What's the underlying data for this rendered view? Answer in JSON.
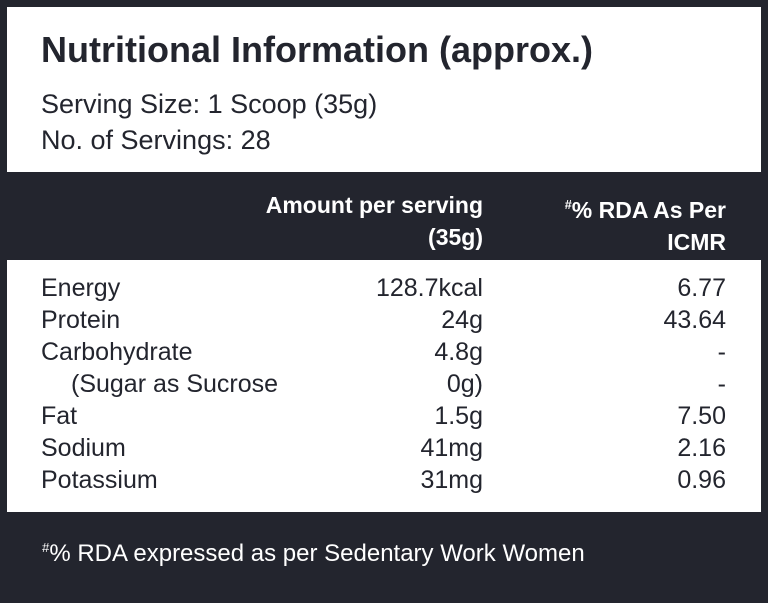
{
  "header": {
    "title": "Nutritional Information (approx.)",
    "serving_size": "Serving Size: 1 Scoop (35g)",
    "servings_count": "No. of Servings: 28"
  },
  "columns": {
    "amount_line1": "Amount per serving",
    "amount_line2": "(35g)",
    "rda_marker": "#",
    "rda_line1": "% RDA As Per",
    "rda_line2": "ICMR"
  },
  "rows": [
    {
      "name": "Energy",
      "amount": "128.7kcal",
      "rda": "6.77"
    },
    {
      "name": "Protein",
      "amount": "24g",
      "rda": "43.64"
    },
    {
      "name": "Carbohydrate",
      "amount": "4.8g",
      "rda": "-"
    },
    {
      "name": "(Sugar as Sucrose",
      "amount": "0g)",
      "rda": "-"
    },
    {
      "name": "Fat",
      "amount": "1.5g",
      "rda": "7.50"
    },
    {
      "name": "Sodium",
      "amount": "41mg",
      "rda": "2.16"
    },
    {
      "name": "Potassium",
      "amount": "31mg",
      "rda": "0.96"
    }
  ],
  "footnote": {
    "marker": "#",
    "text": "% RDA expressed as per Sedentary Work Women"
  },
  "colors": {
    "background": "#23252e",
    "panel": "#ffffff"
  }
}
